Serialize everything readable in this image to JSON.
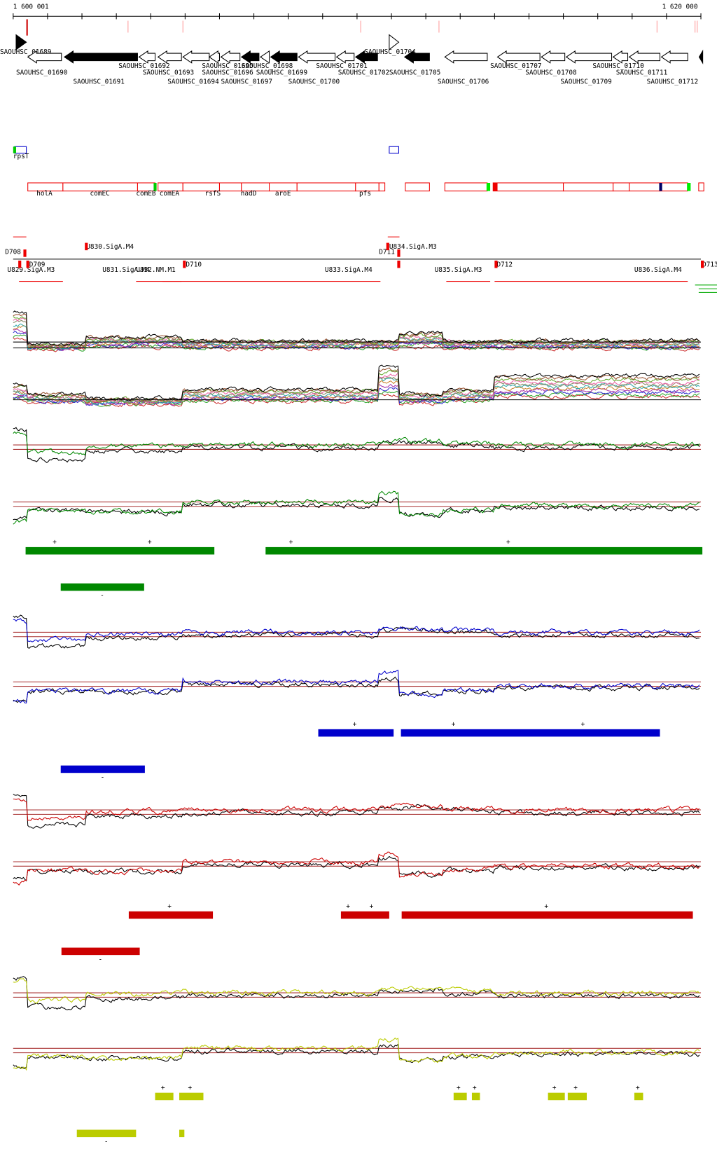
{
  "ruler": {
    "start": "1 600 001",
    "end": "1 620 000"
  },
  "genes": [
    "SAOUHSC_01689",
    "SAOUHSC_01690",
    "SAOUHSC_01691",
    "SAOUHSC_01692",
    "SAOUHSC_01693",
    "SAOUHSC_01694",
    "SAOUHSC_01695",
    "SAOUHSC_01696",
    "SAOUHSC_01697",
    "SAOUHSC_01698",
    "SAOUHSC_01699",
    "SAOUHSC_01700",
    "SAOUHSC_01701",
    "SAOUHSC_01702",
    "SAOUHSC_01704",
    "SAOUHSC_01705",
    "SAOUHSC_01706",
    "SAOUHSC_01707",
    "SAOUHSC_01708",
    "SAOUHSC_01709",
    "SAOUHSC_01710",
    "SAOUHSC_01711",
    "SAOUHSC_01712"
  ],
  "gene_names": [
    "rpsT",
    "holA",
    "comEC",
    "comEB",
    "comEA",
    "rsfS",
    "nadD",
    "aroE",
    "pfs"
  ],
  "regions": [
    "D708",
    "U830.SigA.M4",
    "D709",
    "U829.SigA.M3",
    "U831.SigA.M4",
    "U832.NM.M1",
    "D710",
    "U833.SigA.M4",
    "D711",
    "U834.SigA.M3",
    "U835.SigA.M3",
    "D712",
    "U836.SigA.M4",
    "D713"
  ],
  "strand": {
    "plus": "+",
    "minus": "-"
  }
}
